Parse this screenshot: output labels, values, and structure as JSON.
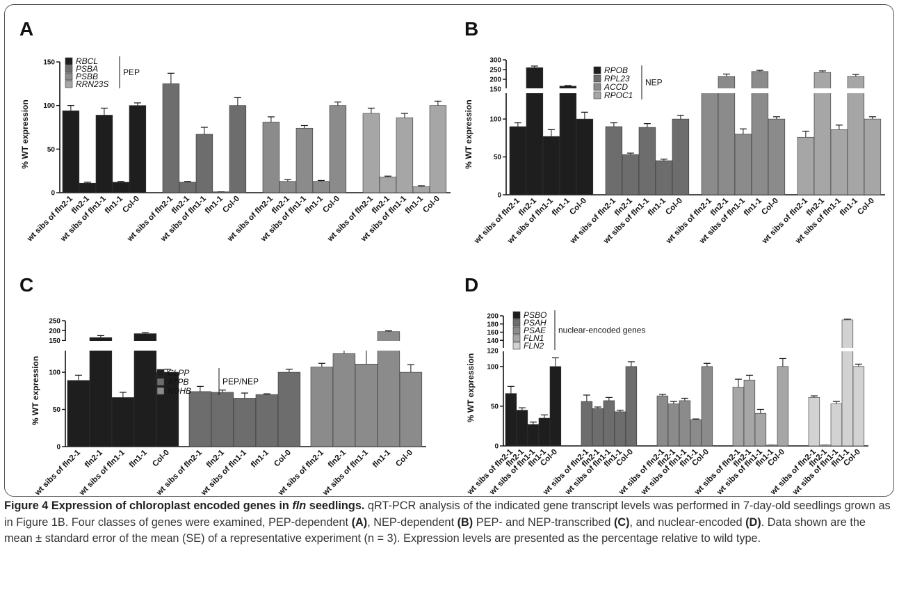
{
  "caption": {
    "title_a": "Figure 4 Expression of chloroplast encoded genes in ",
    "title_b": "fln",
    "title_c": " seedlings.",
    "text_1": " qRT-PCR analysis of the indicated gene transcript levels was performed in 7-day-old seedlings grown as in Figure 1B. Four classes of genes were examined, PEP-dependent ",
    "ref_a": "(A)",
    "text_2": ", NEP-dependent ",
    "ref_b": "(B)",
    "text_3": " PEP- and NEP-transcribed ",
    "ref_c": "(C)",
    "text_4": ", and nuclear-encoded ",
    "ref_d": "(D)",
    "text_5": ". Data shown are the mean ± standard error of the mean (SE) of a representative experiment (n = 3). Expression levels are presented as the percentage relative to wild type."
  },
  "colors": {
    "c1": "#1e1e1e",
    "c2": "#6d6d6d",
    "c3": "#8b8b8b",
    "c4": "#a6a6a6",
    "c5": "#d2d2d2"
  },
  "chart_data": [
    {
      "panel": "A",
      "type": "bar",
      "ylabel": "% WT expression",
      "ylim": [
        0,
        150
      ],
      "yticks": [
        "0",
        "50",
        "100",
        "150"
      ],
      "categories": [
        "wt sibs of fln2-1",
        "fln2-1",
        "wt sibs of fln1-1",
        "fln1-1",
        "Col-0"
      ],
      "legend_group": "PEP",
      "series": [
        {
          "name": "RBCL",
          "values": [
            94,
            11,
            89,
            12,
            100
          ],
          "errors": [
            6,
            1,
            8,
            1,
            3
          ]
        },
        {
          "name": "PSBA",
          "values": [
            125,
            12,
            67,
            1,
            100
          ],
          "errors": [
            12,
            1,
            8,
            0,
            9
          ]
        },
        {
          "name": "PSBB",
          "values": [
            81,
            13,
            74,
            13,
            100
          ],
          "errors": [
            6,
            2,
            3,
            1,
            4
          ]
        },
        {
          "name": "RRN23S",
          "values": [
            91,
            18,
            86,
            7,
            100
          ],
          "errors": [
            6,
            1,
            5,
            1,
            5
          ]
        }
      ]
    },
    {
      "panel": "B",
      "type": "bar",
      "ylabel": "% WT expression",
      "yticks_lower": [
        "0",
        "50",
        "100"
      ],
      "yticks_upper": [
        "150",
        "200",
        "250",
        "300"
      ],
      "categories": [
        "wt sibs of fln2-1",
        "fln2-1",
        "wt sibs of fln1-1",
        "fln1-1",
        "Col-0"
      ],
      "legend_group": "NEP",
      "series": [
        {
          "name": "RPOB",
          "values": [
            90,
            260,
            77,
            165,
            100
          ],
          "errors": [
            5,
            8,
            9,
            3,
            9
          ]
        },
        {
          "name": "RPL23",
          "values": [
            90,
            53,
            89,
            45,
            100
          ],
          "errors": [
            5,
            2,
            5,
            2,
            5
          ]
        },
        {
          "name": "ACCD",
          "values": [
            140,
            215,
            80,
            240,
            100
          ],
          "errors": [
            8,
            12,
            7,
            6,
            3
          ]
        },
        {
          "name": "RPOC1",
          "values": [
            76,
            235,
            86,
            215,
            100
          ],
          "errors": [
            8,
            8,
            6,
            10,
            3
          ]
        }
      ]
    },
    {
      "panel": "C",
      "type": "bar",
      "ylabel": "% WT expression",
      "yticks_lower": [
        "0",
        "50",
        "100"
      ],
      "yticks_upper": [
        "150",
        "200",
        "250"
      ],
      "categories": [
        "wt sibs of fln2-1",
        "fln2-1",
        "wt sibs of fln1-1",
        "fln1-1",
        "Col-0"
      ],
      "legend_group": "PEP/NEP",
      "series": [
        {
          "name": "CLPP",
          "values": [
            89,
            165,
            66,
            185,
            100
          ],
          "errors": [
            7,
            10,
            7,
            5,
            4
          ]
        },
        {
          "name": "ATPB",
          "values": [
            74,
            73,
            65,
            70,
            100
          ],
          "errors": [
            7,
            3,
            7,
            1,
            4
          ]
        },
        {
          "name": "NDHB",
          "values": [
            107,
            125,
            111,
            195,
            100
          ],
          "errors": [
            5,
            8,
            22,
            4,
            10
          ]
        }
      ]
    },
    {
      "panel": "D",
      "type": "bar",
      "ylabel": "% WT expression",
      "yticks_lower": [
        "0",
        "50",
        "100"
      ],
      "yticks_upper": [
        "120",
        "140",
        "160",
        "180",
        "200"
      ],
      "categories": [
        "wt sibs of fln2-1",
        "fln2-1",
        "wt sibs of fln1-1",
        "fln1-1",
        "Col-0"
      ],
      "legend_group": "nuclear-encoded genes",
      "series": [
        {
          "name": "PSBO",
          "values": [
            66,
            45,
            27,
            35,
            100
          ],
          "errors": [
            9,
            3,
            3,
            4,
            11
          ]
        },
        {
          "name": "PSAH",
          "values": [
            56,
            47,
            57,
            43,
            100
          ],
          "errors": [
            8,
            2,
            4,
            2,
            6
          ]
        },
        {
          "name": "PSAE",
          "values": [
            63,
            53,
            57,
            33,
            100
          ],
          "errors": [
            2,
            3,
            3,
            1,
            4
          ]
        },
        {
          "name": "FLN1",
          "values": [
            74,
            83,
            41,
            1,
            100
          ],
          "errors": [
            10,
            6,
            5,
            0,
            10
          ]
        },
        {
          "name": "FLN2",
          "values": [
            61,
            1,
            53,
            190,
            100
          ],
          "errors": [
            2,
            0,
            3,
            2,
            3
          ]
        }
      ]
    }
  ]
}
